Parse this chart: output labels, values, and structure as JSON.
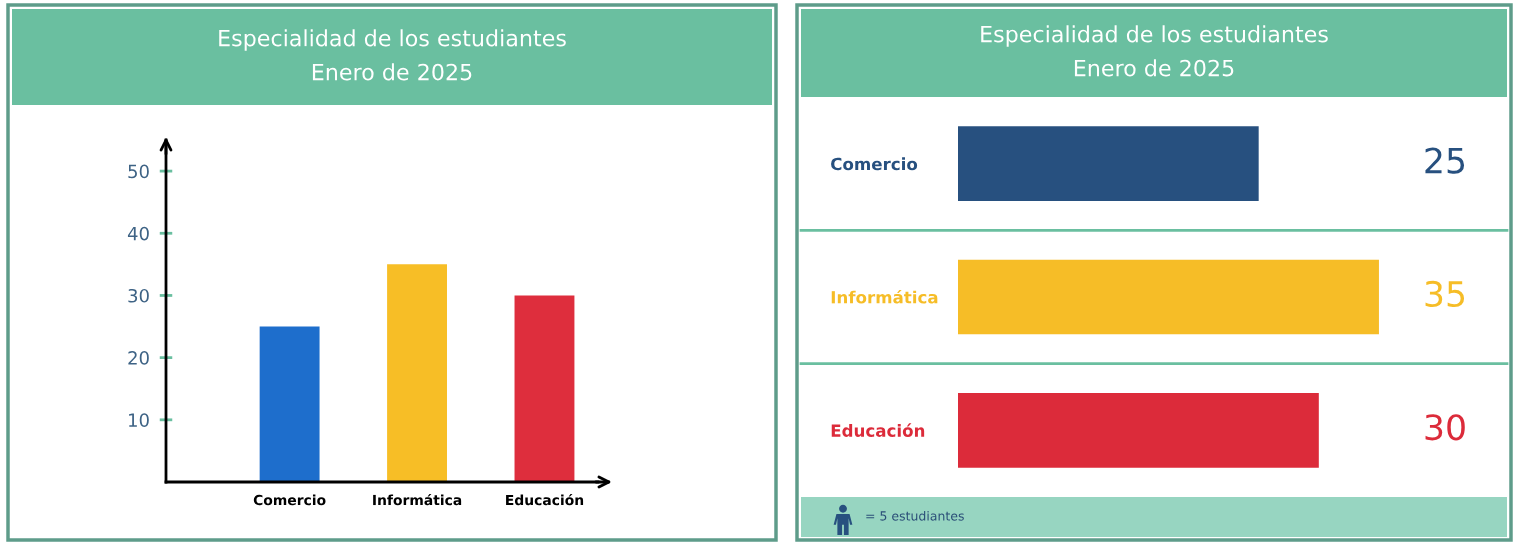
{
  "chart_data": [
    {
      "type": "bar",
      "title": "Especialidad de los estudiantes",
      "subtitle": "Enero de 2025",
      "categories": [
        "Comercio",
        "Informática",
        "Educación"
      ],
      "values": [
        25,
        35,
        30
      ],
      "colors": [
        "#1e6ecc",
        "#f7be26",
        "#de2e3d"
      ],
      "ylim": [
        0,
        55
      ],
      "yticks": [
        10,
        20,
        30,
        40,
        50
      ]
    },
    {
      "type": "bar",
      "orientation": "horizontal",
      "title": "Especialidad de los estudiantes",
      "subtitle": "Enero de 2025",
      "categories": [
        "Comercio",
        "Informática",
        "Educación"
      ],
      "values": [
        25,
        35,
        30
      ],
      "colors": [
        "#27507f",
        "#f6bd27",
        "#dc2b3a"
      ],
      "data_labels": true,
      "tick_labels": "y",
      "annotations": [
        "= 5 estudiantes"
      ]
    }
  ]
}
